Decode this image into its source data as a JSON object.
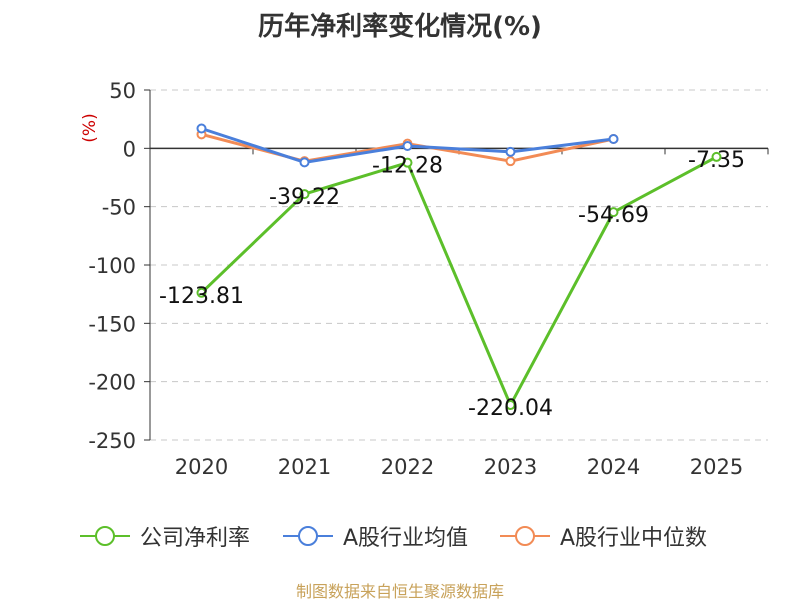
{
  "title": "历年净利率变化情况(%)",
  "source": "制图数据来自恒生聚源数据库",
  "chart_data": {
    "type": "line",
    "ylabel": "(%)",
    "ylim": [
      -250,
      50
    ],
    "yticks": [
      50,
      0,
      -50,
      -100,
      -150,
      -200,
      -250
    ],
    "ytick_labels": [
      "50",
      "0",
      "-50",
      "-100",
      "-150",
      "-200",
      "-250"
    ],
    "categories": [
      "2020",
      "2021",
      "2022",
      "2023",
      "2024",
      "2025"
    ],
    "grid": true,
    "legend_position": "bottom",
    "series": [
      {
        "name": "公司净利率",
        "color": "#5cbf2a",
        "values": [
          -123.81,
          -39.22,
          -12.28,
          -220.04,
          -54.69,
          -7.35
        ],
        "labels": [
          "-123.81",
          "-39.22",
          "-12.28",
          "-220.04",
          "-54.69",
          "-7.35"
        ]
      },
      {
        "name": "A股行业均值",
        "color": "#4a7fdb",
        "values": [
          17,
          -12,
          2,
          -3,
          8,
          null
        ]
      },
      {
        "name": "A股行业中位数",
        "color": "#f28b55",
        "values": [
          12,
          -11,
          4,
          -11,
          8,
          null
        ]
      }
    ]
  }
}
